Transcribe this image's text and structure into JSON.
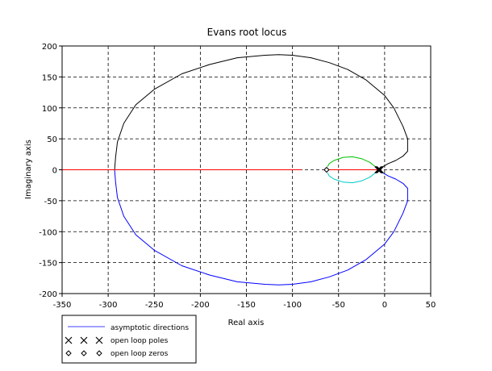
{
  "chart_data": {
    "type": "line",
    "title": "Evans root locus",
    "xlabel": "Real axis",
    "ylabel": "Imaginary axis",
    "xlim": [
      -350,
      50
    ],
    "ylim": [
      -200,
      200
    ],
    "xticks": [
      -350,
      -300,
      -250,
      -200,
      -150,
      -100,
      -50,
      0,
      50
    ],
    "yticks": [
      -200,
      -150,
      -100,
      -50,
      0,
      50,
      100,
      150,
      200
    ],
    "grid": true,
    "legend_position": "bottom-left",
    "colors": {
      "upper_big": "#000000",
      "lower_big": "#0000ff",
      "real_axis": "#ff0000",
      "upper_small": "#00c000",
      "lower_small": "#00c8c8",
      "asymptote": "#0000ff"
    },
    "series": [
      {
        "key": "upper_big",
        "color_key": "upper_big",
        "points": [
          [
            -6,
            0
          ],
          [
            -3,
            4
          ],
          [
            4,
            10
          ],
          [
            12,
            15
          ],
          [
            20,
            22
          ],
          [
            25,
            30
          ],
          [
            25,
            50
          ],
          [
            20,
            70
          ],
          [
            10,
            100
          ],
          [
            0,
            120
          ],
          [
            -20,
            145
          ],
          [
            -40,
            162
          ],
          [
            -60,
            173
          ],
          [
            -80,
            181
          ],
          [
            -100,
            185
          ],
          [
            -115,
            186
          ],
          [
            -130,
            185
          ],
          [
            -160,
            181
          ],
          [
            -190,
            170
          ],
          [
            -220,
            155
          ],
          [
            -250,
            130
          ],
          [
            -270,
            105
          ],
          [
            -283,
            75
          ],
          [
            -290,
            45
          ],
          [
            -292,
            20
          ],
          [
            -293,
            0
          ]
        ]
      },
      {
        "key": "lower_big",
        "color_key": "lower_big",
        "points": [
          [
            -6,
            0
          ],
          [
            -3,
            -4
          ],
          [
            4,
            -10
          ],
          [
            12,
            -15
          ],
          [
            20,
            -22
          ],
          [
            25,
            -30
          ],
          [
            25,
            -50
          ],
          [
            20,
            -70
          ],
          [
            10,
            -100
          ],
          [
            0,
            -120
          ],
          [
            -20,
            -145
          ],
          [
            -40,
            -162
          ],
          [
            -60,
            -173
          ],
          [
            -80,
            -181
          ],
          [
            -100,
            -185
          ],
          [
            -115,
            -186
          ],
          [
            -130,
            -185
          ],
          [
            -160,
            -181
          ],
          [
            -190,
            -170
          ],
          [
            -220,
            -155
          ],
          [
            -250,
            -130
          ],
          [
            -270,
            -105
          ],
          [
            -283,
            -75
          ],
          [
            -290,
            -45
          ],
          [
            -292,
            -20
          ],
          [
            -293,
            0
          ]
        ]
      },
      {
        "key": "real_axis",
        "color_key": "real_axis",
        "points": [
          [
            -350,
            0
          ],
          [
            -90,
            0
          ]
        ]
      },
      {
        "key": "real_axis_near_origin",
        "color_key": "real_axis",
        "points": [
          [
            -60,
            0
          ],
          [
            -6,
            0
          ]
        ]
      },
      {
        "key": "upper_small",
        "color_key": "upper_small",
        "points": [
          [
            -6,
            0
          ],
          [
            -10,
            5
          ],
          [
            -16,
            12
          ],
          [
            -25,
            18
          ],
          [
            -35,
            21
          ],
          [
            -45,
            20
          ],
          [
            -55,
            15
          ],
          [
            -60,
            10
          ],
          [
            -62,
            5
          ]
        ]
      },
      {
        "key": "lower_small",
        "color_key": "lower_small",
        "points": [
          [
            -6,
            0
          ],
          [
            -10,
            -5
          ],
          [
            -16,
            -12
          ],
          [
            -25,
            -18
          ],
          [
            -35,
            -21
          ],
          [
            -45,
            -20
          ],
          [
            -55,
            -15
          ],
          [
            -60,
            -10
          ],
          [
            -62,
            -5
          ]
        ]
      }
    ],
    "poles": [
      [
        -5,
        0
      ],
      [
        -6,
        0
      ],
      [
        -7,
        0
      ]
    ],
    "zeros": [
      [
        -63,
        0
      ]
    ],
    "legend": [
      {
        "label": "asymptotic directions",
        "marker": "line"
      },
      {
        "label": "open loop poles",
        "marker": "x"
      },
      {
        "label": "open loop zeros",
        "marker": "diamond"
      }
    ]
  }
}
